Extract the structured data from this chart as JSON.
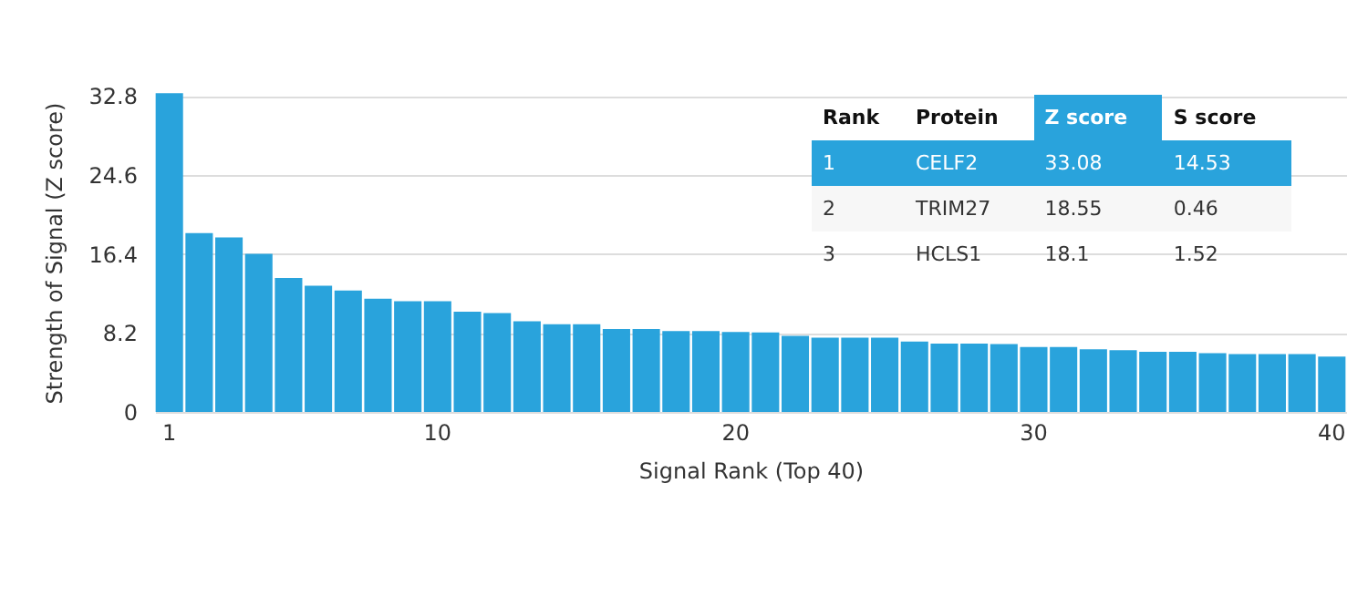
{
  "chart_data": {
    "type": "bar",
    "categories": [
      "1",
      null,
      null,
      null,
      null,
      null,
      null,
      null,
      null,
      "10",
      null,
      null,
      null,
      null,
      null,
      null,
      null,
      null,
      null,
      "20",
      null,
      null,
      null,
      null,
      null,
      null,
      null,
      null,
      null,
      "30",
      null,
      null,
      null,
      null,
      null,
      null,
      null,
      null,
      null,
      "40"
    ],
    "values": [
      33.08,
      18.55,
      18.1,
      16.4,
      13.9,
      13.1,
      12.6,
      11.75,
      11.5,
      11.5,
      10.4,
      10.25,
      9.4,
      9.1,
      9.1,
      8.6,
      8.6,
      8.4,
      8.4,
      8.3,
      8.25,
      7.9,
      7.7,
      7.7,
      7.7,
      7.3,
      7.1,
      7.1,
      7.05,
      6.75,
      6.75,
      6.5,
      6.4,
      6.25,
      6.25,
      6.1,
      6.0,
      6.0,
      6.0,
      5.75
    ],
    "color": "#29a3dc",
    "ylim": [
      0,
      33.1
    ],
    "yticks": [
      0,
      8.2,
      16.4,
      24.6,
      32.8
    ],
    "grid": "y",
    "xlabel": "Signal Rank (Top 40)",
    "ylabel": "Strength of Signal (Z score)",
    "annotations": [
      "Rank",
      "Protein",
      "Z score",
      "S score",
      "1",
      "CELF2",
      "33.08",
      "14.53",
      "2",
      "TRIM27",
      "18.55",
      "0.46",
      "3",
      "HCLS1",
      "18.1",
      "1.52"
    ]
  }
}
